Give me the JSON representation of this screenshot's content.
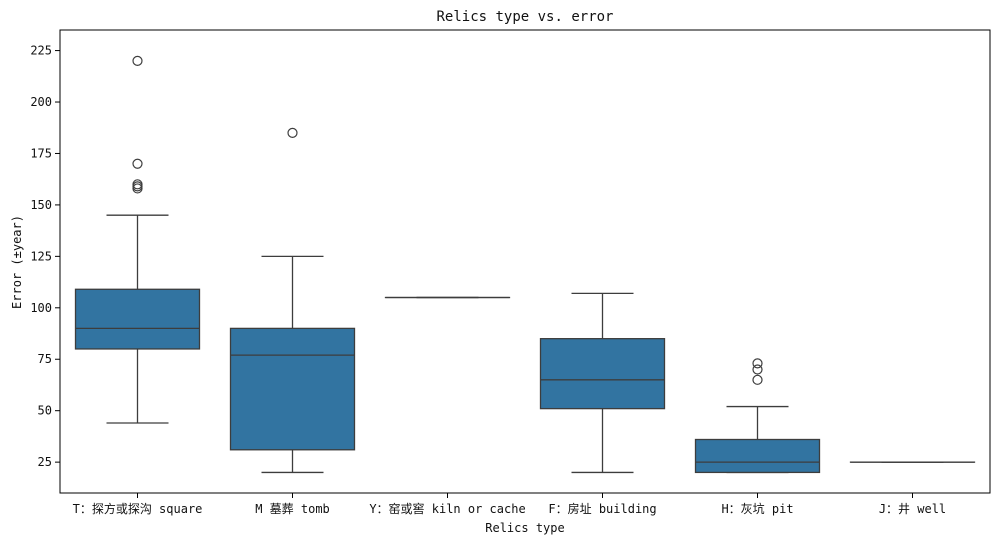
{
  "chart_data": {
    "type": "box",
    "title": "Relics type vs. error",
    "xlabel": "Relics type",
    "ylabel": "Error (±year)",
    "ylim": [
      10,
      235
    ],
    "yticks": [
      25,
      50,
      75,
      100,
      125,
      150,
      175,
      200,
      225
    ],
    "grid": false,
    "box_color": "#3274a1",
    "line_color": "#3d3d3d",
    "categories": [
      "T：探方或探沟 square",
      "M 墓葬 tomb",
      "Y：窑或窖 kiln or cache",
      "F：房址 building",
      "H：灰坑 pit",
      "J：井 well"
    ],
    "boxes": [
      {
        "category": "T：探方或探沟 square",
        "whisker_low": 44,
        "q1": 80,
        "median": 90,
        "q3": 109,
        "whisker_high": 145,
        "outliers": [
          158,
          159,
          160,
          170,
          220
        ]
      },
      {
        "category": "M 墓葬 tomb",
        "whisker_low": 20,
        "q1": 31,
        "median": 77,
        "q3": 90,
        "whisker_high": 125,
        "outliers": [
          185
        ]
      },
      {
        "category": "Y：窑或窖 kiln or cache",
        "whisker_low": 105,
        "q1": 105,
        "median": 105,
        "q3": 105,
        "whisker_high": 105,
        "outliers": []
      },
      {
        "category": "F：房址 building",
        "whisker_low": 20,
        "q1": 51,
        "median": 65,
        "q3": 85,
        "whisker_high": 107,
        "outliers": []
      },
      {
        "category": "H：灰坑 pit",
        "whisker_low": 20,
        "q1": 20,
        "median": 25,
        "q3": 36,
        "whisker_high": 52,
        "outliers": [
          65,
          70,
          73
        ]
      },
      {
        "category": "J：井 well",
        "whisker_low": 25,
        "q1": 25,
        "median": 25,
        "q3": 25,
        "whisker_high": 25,
        "outliers": []
      }
    ]
  }
}
